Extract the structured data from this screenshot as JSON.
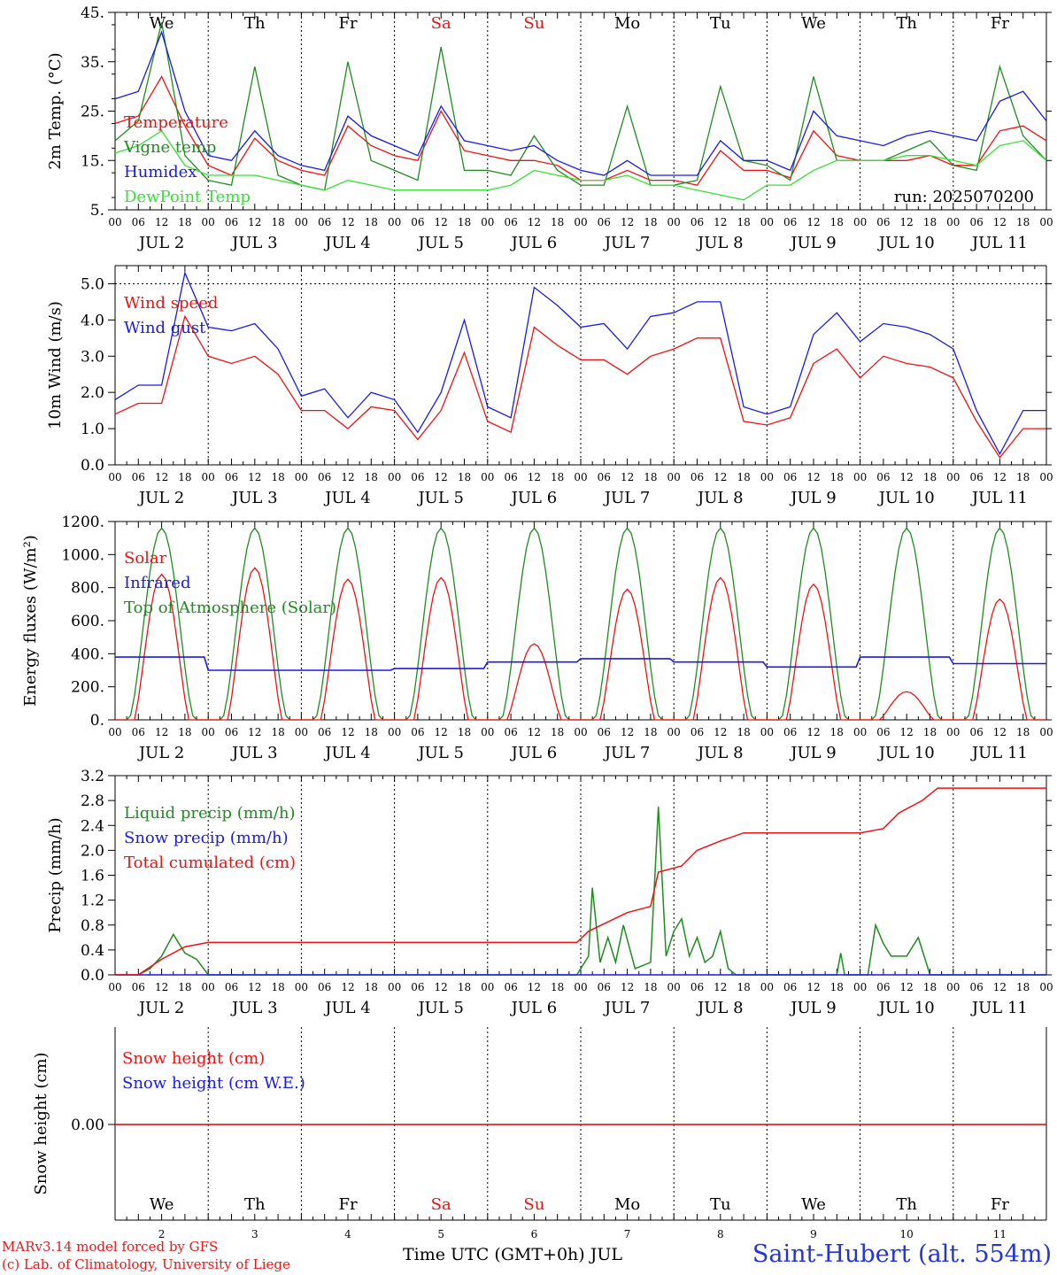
{
  "colors": {
    "red": "#ee1111",
    "blue": "#1a1ae6",
    "green": "#1e8c1e",
    "light_green": "#33e233",
    "black": "#000000"
  },
  "footer": {
    "model_line": "MARv3.14 model forced by GFS",
    "copyright_line": "(c) Lab. of Climatology, University of Liege",
    "time_label": "Time UTC (GMT+0h) JUL",
    "station": "Saint-Hubert (alt. 554m)"
  },
  "chart_data": [
    {
      "type": "line",
      "panel": "temperature",
      "ylabel": "2m Temp. (°C)",
      "ylim": [
        5,
        45
      ],
      "yticks": [
        "5.",
        "15.",
        "25.",
        "35.",
        "45."
      ],
      "run_label": "run: 2025070200",
      "weekdays": [
        {
          "label": "We",
          "color": "#000000"
        },
        {
          "label": "Th",
          "color": "#000000"
        },
        {
          "label": "Fr",
          "color": "#000000"
        },
        {
          "label": "Sa",
          "color": "#ee1111"
        },
        {
          "label": "Su",
          "color": "#ee1111"
        },
        {
          "label": "Mo",
          "color": "#000000"
        },
        {
          "label": "Tu",
          "color": "#000000"
        },
        {
          "label": "We",
          "color": "#000000"
        },
        {
          "label": "Th",
          "color": "#000000"
        },
        {
          "label": "Fr",
          "color": "#000000"
        }
      ],
      "x_hours": [
        0,
        6,
        12,
        18,
        24,
        30,
        36,
        42,
        48,
        54,
        60,
        66,
        72,
        78,
        84,
        90,
        96,
        102,
        108,
        114,
        120,
        126,
        132,
        138,
        144,
        150,
        156,
        162,
        168,
        174,
        180,
        186,
        192,
        198,
        204,
        210,
        216,
        222,
        228,
        234,
        240
      ],
      "series": [
        {
          "name": "Temperature",
          "color": "#ee1111",
          "values": [
            22.5,
            24,
            32,
            22,
            14,
            12,
            19.5,
            15,
            13,
            12,
            22,
            18,
            16,
            15,
            25,
            17,
            16,
            15,
            15,
            14,
            11,
            11,
            13,
            11,
            11,
            10,
            17,
            13,
            13,
            11.5,
            21,
            16,
            15,
            15,
            15,
            16,
            14,
            14,
            21,
            22,
            19
          ]
        },
        {
          "name": "Vigne temp",
          "color": "#1e8c1e",
          "values": [
            19,
            23,
            43,
            16,
            11,
            10,
            34,
            12,
            10,
            9,
            35,
            15,
            13,
            11,
            38,
            13,
            13,
            12,
            20,
            13,
            10,
            10,
            26,
            10,
            10,
            11,
            30,
            15,
            14,
            11,
            32,
            15,
            15,
            15,
            17,
            19,
            14,
            13,
            34,
            20,
            15
          ]
        },
        {
          "name": "Humidex",
          "color": "#1a1ae6",
          "values": [
            27.5,
            29,
            41,
            25,
            16,
            15,
            21,
            16,
            14,
            13,
            24,
            20,
            18,
            16,
            26,
            19,
            18,
            17,
            18,
            15,
            13,
            12,
            15,
            12,
            12,
            12,
            19,
            15,
            15,
            13,
            25,
            20,
            19,
            18,
            20,
            21,
            20,
            19,
            27,
            29,
            23
          ]
        },
        {
          "name": "DewPoint Temp",
          "color": "#33e233",
          "values": [
            16.5,
            18,
            21,
            14,
            12,
            12,
            12,
            11,
            10,
            9,
            11,
            10,
            9,
            9,
            9,
            9,
            9,
            10,
            13,
            12,
            11,
            11,
            12,
            10,
            10,
            9,
            8,
            7,
            10,
            10,
            13,
            15,
            15,
            15,
            16,
            16,
            15,
            14,
            18,
            19,
            15
          ]
        }
      ]
    },
    {
      "type": "line",
      "panel": "wind",
      "ylabel": "10m Wind (m/s)",
      "ylim": [
        0,
        5.5
      ],
      "yticks": [
        "0.0",
        "1.0",
        "2.0",
        "3.0",
        "4.0",
        "5.0"
      ],
      "reference_line": 5.0,
      "x_hours": [
        0,
        6,
        12,
        18,
        24,
        30,
        36,
        42,
        48,
        54,
        60,
        66,
        72,
        78,
        84,
        90,
        96,
        102,
        108,
        114,
        120,
        126,
        132,
        138,
        144,
        150,
        156,
        162,
        168,
        174,
        180,
        186,
        192,
        198,
        204,
        210,
        216,
        222,
        228,
        234,
        240
      ],
      "series": [
        {
          "name": "Wind speed",
          "color": "#ee1111",
          "values": [
            1.4,
            1.7,
            1.7,
            4.1,
            3.0,
            2.8,
            3.0,
            2.5,
            1.5,
            1.5,
            1.0,
            1.6,
            1.5,
            0.7,
            1.5,
            3.1,
            1.2,
            0.9,
            3.8,
            3.3,
            2.9,
            2.9,
            2.5,
            3.0,
            3.2,
            3.5,
            3.5,
            1.2,
            1.1,
            1.3,
            2.8,
            3.2,
            2.4,
            3.0,
            2.8,
            2.7,
            2.4,
            1.2,
            0.2,
            1.0,
            1.0
          ]
        },
        {
          "name": "Wind gust",
          "color": "#1a1ae6",
          "values": [
            1.8,
            2.2,
            2.2,
            5.3,
            3.8,
            3.7,
            3.9,
            3.2,
            1.9,
            2.1,
            1.3,
            2.0,
            1.8,
            0.9,
            2.0,
            4.0,
            1.6,
            1.3,
            4.9,
            4.4,
            3.8,
            3.9,
            3.2,
            4.1,
            4.2,
            4.5,
            4.5,
            1.6,
            1.4,
            1.6,
            3.6,
            4.2,
            3.4,
            3.9,
            3.8,
            3.6,
            3.2,
            1.5,
            0.3,
            1.5,
            1.5
          ]
        }
      ]
    },
    {
      "type": "line",
      "panel": "energy",
      "ylabel": "Energy fluxes (W/m²)",
      "ylim": [
        0,
        1200
      ],
      "yticks": [
        "0.",
        "200.",
        "400.",
        "600.",
        "800.",
        "1000.",
        "1200."
      ],
      "toa_peak": 1160,
      "solar_peaks": [
        880,
        920,
        850,
        860,
        460,
        790,
        860,
        820,
        170,
        730
      ],
      "infrared_levels": [
        380,
        300,
        300,
        310,
        350,
        370,
        350,
        320,
        380,
        340
      ],
      "series_names": [
        {
          "name": "Solar",
          "color": "#ee1111"
        },
        {
          "name": "Infrared",
          "color": "#1a1ae6"
        },
        {
          "name": "Top of Atmosphere (Solar)",
          "color": "#1e8c1e"
        }
      ]
    },
    {
      "type": "line",
      "panel": "precip",
      "ylabel": "Precip (mm/h)",
      "ylim": [
        0,
        3.2
      ],
      "yticks": [
        "0.0",
        "0.4",
        "0.8",
        "1.2",
        "1.6",
        "2.0",
        "2.4",
        "2.8",
        "3.2"
      ],
      "series": [
        {
          "name": "Liquid precip (mm/h)",
          "color": "#1e8c1e",
          "points": [
            [
              0,
              0
            ],
            [
              6,
              0
            ],
            [
              9,
              0.1
            ],
            [
              12,
              0.3
            ],
            [
              15,
              0.65
            ],
            [
              18,
              0.35
            ],
            [
              21,
              0.25
            ],
            [
              24,
              0
            ],
            [
              119,
              0
            ],
            [
              122,
              0.3
            ],
            [
              123,
              1.4
            ],
            [
              125,
              0.2
            ],
            [
              127,
              0.6
            ],
            [
              129,
              0.2
            ],
            [
              131,
              0.8
            ],
            [
              134,
              0.1
            ],
            [
              138,
              0.2
            ],
            [
              140,
              2.7
            ],
            [
              142,
              0.3
            ],
            [
              144,
              0.7
            ],
            [
              146,
              0.9
            ],
            [
              148,
              0.3
            ],
            [
              150,
              0.6
            ],
            [
              152,
              0.2
            ],
            [
              154,
              0.3
            ],
            [
              156,
              0.7
            ],
            [
              158,
              0.1
            ],
            [
              160,
              0
            ],
            [
              186,
              0
            ],
            [
              187,
              0.35
            ],
            [
              188,
              0
            ],
            [
              194,
              0
            ],
            [
              196,
              0.8
            ],
            [
              198,
              0.5
            ],
            [
              200,
              0.3
            ],
            [
              204,
              0.3
            ],
            [
              207,
              0.6
            ],
            [
              209,
              0.2
            ],
            [
              210,
              0
            ],
            [
              240,
              0
            ]
          ]
        },
        {
          "name": "Snow precip (mm/h)",
          "color": "#1a1ae6",
          "points": [
            [
              0,
              0
            ],
            [
              240,
              0
            ]
          ]
        },
        {
          "name": "Total cumulated (cm)",
          "color": "#ee1111",
          "points": [
            [
              0,
              0
            ],
            [
              6,
              0
            ],
            [
              12,
              0.25
            ],
            [
              18,
              0.45
            ],
            [
              24,
              0.52
            ],
            [
              119,
              0.52
            ],
            [
              122,
              0.7
            ],
            [
              126,
              0.82
            ],
            [
              132,
              1.0
            ],
            [
              138,
              1.1
            ],
            [
              140,
              1.65
            ],
            [
              146,
              1.75
            ],
            [
              150,
              2.0
            ],
            [
              156,
              2.15
            ],
            [
              162,
              2.28
            ],
            [
              192,
              2.28
            ],
            [
              198,
              2.35
            ],
            [
              202,
              2.6
            ],
            [
              208,
              2.8
            ],
            [
              212,
              3.0
            ],
            [
              240,
              3.0
            ]
          ]
        }
      ]
    },
    {
      "type": "line",
      "panel": "snow",
      "ylabel": "Snow height (cm)",
      "ytick": "0.00",
      "series": [
        {
          "name": "Snow height (cm)",
          "color": "#ee1111",
          "values": [
            0,
            0
          ]
        },
        {
          "name": "Snow height (cm W.E.)",
          "color": "#1a1ae6",
          "values": [
            0,
            0
          ]
        }
      ],
      "weekdays": [
        {
          "label": "We",
          "color": "#000000"
        },
        {
          "label": "Th",
          "color": "#000000"
        },
        {
          "label": "Fr",
          "color": "#000000"
        },
        {
          "label": "Sa",
          "color": "#ee1111"
        },
        {
          "label": "Su",
          "color": "#ee1111"
        },
        {
          "label": "Mo",
          "color": "#000000"
        },
        {
          "label": "Tu",
          "color": "#000000"
        },
        {
          "label": "We",
          "color": "#000000"
        },
        {
          "label": "Th",
          "color": "#000000"
        },
        {
          "label": "Fr",
          "color": "#000000"
        }
      ],
      "day_numbers": [
        "2",
        "3",
        "4",
        "5",
        "6",
        "7",
        "8",
        "9",
        "10",
        "11"
      ]
    }
  ],
  "x_axis": {
    "hour_labels": [
      "00",
      "06",
      "12",
      "18"
    ],
    "final_label": "00",
    "day_labels": [
      "JUL  2",
      "JUL  3",
      "JUL  4",
      "JUL  5",
      "JUL  6",
      "JUL  7",
      "JUL  8",
      "JUL  9",
      "JUL 10",
      "JUL 11"
    ]
  }
}
